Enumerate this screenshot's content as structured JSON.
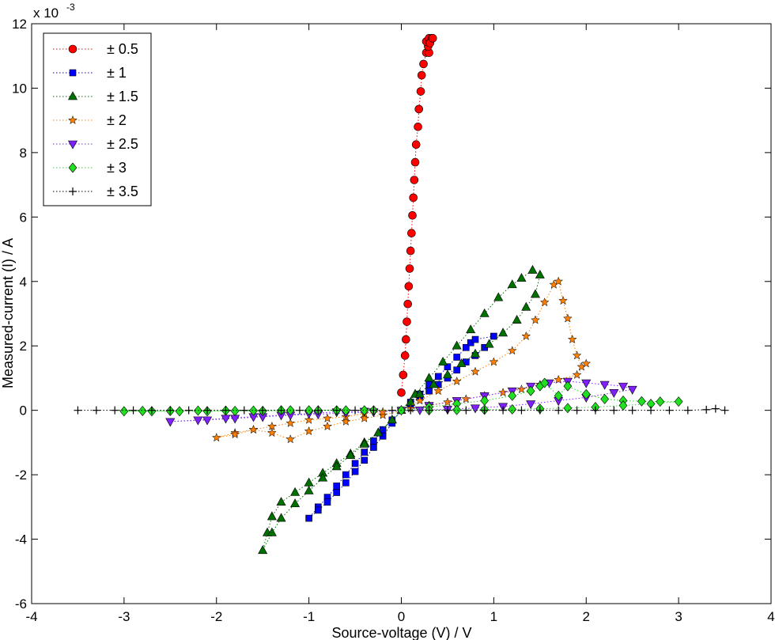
{
  "chart_data": {
    "type": "scatter",
    "title": "",
    "xlabel": "Source-voltage (V) / V",
    "ylabel": "Measured-current (I) / A",
    "y_exponent_label": "x 10",
    "y_exponent_power": "-3",
    "xlim": [
      -4,
      4
    ],
    "ylim": [
      -6,
      12
    ],
    "xticks": [
      -4,
      -3,
      -2,
      -1,
      0,
      1,
      2,
      3,
      4
    ],
    "yticks": [
      -6,
      -4,
      -2,
      0,
      2,
      4,
      6,
      8,
      10,
      12
    ],
    "grid": false,
    "legend_position": "top-left",
    "line_style": "dotted",
    "series": [
      {
        "name": "± 0.5",
        "color": "#ff0000",
        "marker": "circle",
        "points": [
          [
            0,
            0.55
          ],
          [
            0.02,
            1.1
          ],
          [
            0.04,
            1.7
          ],
          [
            0.05,
            2.2
          ],
          [
            0.06,
            2.75
          ],
          [
            0.07,
            3.3
          ],
          [
            0.08,
            3.85
          ],
          [
            0.09,
            4.4
          ],
          [
            0.1,
            4.95
          ],
          [
            0.11,
            5.5
          ],
          [
            0.12,
            6.05
          ],
          [
            0.13,
            6.6
          ],
          [
            0.14,
            7.15
          ],
          [
            0.15,
            7.7
          ],
          [
            0.16,
            8.25
          ],
          [
            0.18,
            8.8
          ],
          [
            0.19,
            9.35
          ],
          [
            0.21,
            9.9
          ],
          [
            0.22,
            10.4
          ],
          [
            0.24,
            10.75
          ],
          [
            0.27,
            11.1
          ],
          [
            0.3,
            11.1
          ],
          [
            0.29,
            11.3
          ],
          [
            0.27,
            11.45
          ],
          [
            0.3,
            11.55
          ],
          [
            0.33,
            11.55
          ],
          [
            0.31,
            11.4
          ],
          [
            0.34,
            11.55
          ]
        ]
      },
      {
        "name": "± 1",
        "color": "#0000ff",
        "marker": "square",
        "points": [
          [
            0,
            0
          ],
          [
            0.1,
            0.25
          ],
          [
            0.2,
            0.5
          ],
          [
            0.3,
            0.8
          ],
          [
            0.4,
            1.05
          ],
          [
            0.5,
            1.35
          ],
          [
            0.6,
            1.65
          ],
          [
            0.7,
            1.95
          ],
          [
            0.75,
            2.1
          ],
          [
            0.8,
            2.2
          ],
          [
            1.0,
            2.3
          ],
          [
            0.9,
            1.95
          ],
          [
            0.8,
            1.7
          ],
          [
            0.7,
            1.5
          ],
          [
            0.6,
            1.25
          ],
          [
            0.5,
            1.0
          ],
          [
            0.4,
            0.8
          ],
          [
            0.3,
            0.6
          ],
          [
            0.2,
            0.4
          ],
          [
            0.1,
            0.2
          ],
          [
            -0.1,
            -0.3
          ],
          [
            -0.2,
            -0.6
          ],
          [
            -0.3,
            -0.95
          ],
          [
            -0.4,
            -1.3
          ],
          [
            -0.5,
            -1.65
          ],
          [
            -0.6,
            -2.0
          ],
          [
            -0.7,
            -2.35
          ],
          [
            -0.8,
            -2.7
          ],
          [
            -0.9,
            -3.0
          ],
          [
            -1.0,
            -3.35
          ],
          [
            -0.9,
            -3.1
          ],
          [
            -0.8,
            -2.85
          ],
          [
            -0.7,
            -2.55
          ],
          [
            -0.6,
            -2.25
          ],
          [
            -0.5,
            -1.9
          ],
          [
            -0.4,
            -1.55
          ],
          [
            -0.3,
            -1.15
          ],
          [
            -0.2,
            -0.8
          ],
          [
            -0.1,
            -0.4
          ]
        ]
      },
      {
        "name": "± 1.5",
        "color": "#007000",
        "marker": "triangle-up",
        "points": [
          [
            0,
            0
          ],
          [
            0.15,
            0.5
          ],
          [
            0.3,
            1.0
          ],
          [
            0.45,
            1.5
          ],
          [
            0.6,
            2.0
          ],
          [
            0.75,
            2.5
          ],
          [
            0.9,
            3.0
          ],
          [
            1.05,
            3.5
          ],
          [
            1.2,
            3.9
          ],
          [
            1.3,
            4.1
          ],
          [
            1.42,
            4.35
          ],
          [
            1.5,
            4.2
          ],
          [
            1.45,
            3.6
          ],
          [
            1.35,
            3.2
          ],
          [
            1.25,
            2.8
          ],
          [
            1.1,
            2.4
          ],
          [
            0.95,
            2.05
          ],
          [
            0.8,
            1.75
          ],
          [
            0.65,
            1.45
          ],
          [
            0.5,
            1.1
          ],
          [
            0.35,
            0.8
          ],
          [
            0.2,
            0.5
          ],
          [
            0.1,
            0.25
          ],
          [
            -0.1,
            -0.3
          ],
          [
            -0.25,
            -0.7
          ],
          [
            -0.4,
            -1.0
          ],
          [
            -0.55,
            -1.35
          ],
          [
            -0.7,
            -1.65
          ],
          [
            -0.85,
            -1.95
          ],
          [
            -1.0,
            -2.25
          ],
          [
            -1.15,
            -2.55
          ],
          [
            -1.3,
            -2.85
          ],
          [
            -1.4,
            -3.3
          ],
          [
            -1.45,
            -3.8
          ],
          [
            -1.5,
            -4.35
          ],
          [
            -1.4,
            -3.8
          ],
          [
            -1.3,
            -3.35
          ],
          [
            -1.15,
            -2.9
          ],
          [
            -1.0,
            -2.5
          ],
          [
            -0.85,
            -2.1
          ],
          [
            -0.7,
            -1.75
          ],
          [
            -0.55,
            -1.4
          ],
          [
            -0.4,
            -1.05
          ],
          [
            -0.25,
            -0.7
          ],
          [
            -0.1,
            -0.3
          ]
        ]
      },
      {
        "name": "± 2",
        "color": "#ff8000",
        "marker": "star",
        "points": [
          [
            0,
            0
          ],
          [
            0.2,
            0.3
          ],
          [
            0.4,
            0.6
          ],
          [
            0.6,
            0.9
          ],
          [
            0.8,
            1.2
          ],
          [
            1.0,
            1.5
          ],
          [
            1.2,
            1.85
          ],
          [
            1.35,
            2.3
          ],
          [
            1.45,
            2.8
          ],
          [
            1.55,
            3.35
          ],
          [
            1.65,
            3.9
          ],
          [
            1.7,
            4.0
          ],
          [
            1.75,
            3.4
          ],
          [
            1.8,
            2.85
          ],
          [
            1.85,
            2.2
          ],
          [
            1.9,
            1.7
          ],
          [
            1.95,
            1.35
          ],
          [
            2.0,
            1.45
          ],
          [
            1.9,
            1.1
          ],
          [
            1.7,
            0.95
          ],
          [
            1.5,
            0.8
          ],
          [
            1.3,
            0.65
          ],
          [
            1.1,
            0.55
          ],
          [
            0.9,
            0.45
          ],
          [
            0.7,
            0.35
          ],
          [
            0.5,
            0.25
          ],
          [
            0.3,
            0.15
          ],
          [
            0.1,
            0.05
          ],
          [
            -0.2,
            -0.15
          ],
          [
            -0.4,
            -0.25
          ],
          [
            -0.6,
            -0.35
          ],
          [
            -0.8,
            -0.5
          ],
          [
            -1.0,
            -0.65
          ],
          [
            -1.2,
            -0.9
          ],
          [
            -1.4,
            -0.7
          ],
          [
            -1.6,
            -0.6
          ],
          [
            -1.8,
            -0.7
          ],
          [
            -2.0,
            -0.85
          ],
          [
            -1.8,
            -0.75
          ],
          [
            -1.6,
            -0.6
          ],
          [
            -1.4,
            -0.5
          ],
          [
            -1.2,
            -0.4
          ],
          [
            -1.0,
            -0.3
          ],
          [
            -0.8,
            -0.25
          ],
          [
            -0.6,
            -0.2
          ],
          [
            -0.4,
            -0.1
          ],
          [
            -0.2,
            -0.05
          ]
        ]
      },
      {
        "name": "± 2.5",
        "color": "#8020ff",
        "marker": "triangle-down",
        "points": [
          [
            0,
            0
          ],
          [
            0.3,
            0.15
          ],
          [
            0.6,
            0.3
          ],
          [
            0.9,
            0.45
          ],
          [
            1.2,
            0.6
          ],
          [
            1.4,
            0.75
          ],
          [
            1.6,
            0.85
          ],
          [
            1.8,
            0.9
          ],
          [
            2.0,
            0.85
          ],
          [
            2.2,
            0.8
          ],
          [
            2.4,
            0.75
          ],
          [
            2.5,
            0.65
          ],
          [
            2.3,
            0.55
          ],
          [
            2.0,
            0.4
          ],
          [
            1.7,
            0.3
          ],
          [
            1.4,
            0.2
          ],
          [
            1.1,
            0.12
          ],
          [
            0.8,
            0.07
          ],
          [
            0.5,
            0.03
          ],
          [
            0.2,
            0.01
          ],
          [
            -0.3,
            -0.05
          ],
          [
            -0.6,
            -0.08
          ],
          [
            -0.9,
            -0.12
          ],
          [
            -1.2,
            -0.15
          ],
          [
            -1.5,
            -0.2
          ],
          [
            -1.8,
            -0.25
          ],
          [
            -2.1,
            -0.3
          ],
          [
            -2.5,
            -0.35
          ],
          [
            -2.2,
            -0.3
          ],
          [
            -1.9,
            -0.25
          ],
          [
            -1.6,
            -0.2
          ],
          [
            -1.3,
            -0.15
          ],
          [
            -1.0,
            -0.1
          ],
          [
            -0.7,
            -0.05
          ],
          [
            -0.4,
            -0.03
          ]
        ]
      },
      {
        "name": "± 3",
        "color": "#20e020",
        "marker": "diamond",
        "points": [
          [
            0,
            0
          ],
          [
            0.3,
            0.1
          ],
          [
            0.6,
            0.2
          ],
          [
            0.9,
            0.3
          ],
          [
            1.2,
            0.45
          ],
          [
            1.4,
            0.6
          ],
          [
            1.5,
            0.75
          ],
          [
            1.55,
            0.85
          ],
          [
            1.7,
            0.45
          ],
          [
            1.8,
            0.75
          ],
          [
            2.0,
            0.5
          ],
          [
            2.2,
            0.35
          ],
          [
            2.4,
            0.3
          ],
          [
            2.6,
            0.28
          ],
          [
            2.8,
            0.27
          ],
          [
            3.0,
            0.27
          ],
          [
            2.7,
            0.2
          ],
          [
            2.4,
            0.15
          ],
          [
            2.1,
            0.1
          ],
          [
            1.8,
            0.07
          ],
          [
            1.5,
            0.05
          ],
          [
            1.2,
            0.03
          ],
          [
            0.9,
            0.02
          ],
          [
            0.6,
            0.01
          ],
          [
            0.3,
            0.0
          ],
          [
            -0.3,
            0.0
          ],
          [
            -0.6,
            0.0
          ],
          [
            -0.9,
            0.0
          ],
          [
            -1.2,
            0.0
          ],
          [
            -1.5,
            -0.02
          ],
          [
            -1.8,
            -0.02
          ],
          [
            -2.1,
            -0.03
          ],
          [
            -2.4,
            -0.03
          ],
          [
            -2.7,
            -0.03
          ],
          [
            -3.0,
            -0.03
          ],
          [
            -2.8,
            -0.02
          ],
          [
            -2.5,
            -0.02
          ],
          [
            -2.2,
            -0.01
          ],
          [
            -1.9,
            -0.01
          ],
          [
            -1.6,
            -0.01
          ],
          [
            -1.3,
            0.0
          ],
          [
            -1.0,
            0.0
          ],
          [
            -0.7,
            0.0
          ],
          [
            -0.4,
            0.0
          ]
        ]
      },
      {
        "name": "± 3.5",
        "color": "#000000",
        "marker": "plus",
        "points": [
          [
            -3.5,
            0.0
          ],
          [
            -3.3,
            0.0
          ],
          [
            -3.1,
            0.0
          ],
          [
            -2.9,
            0.0
          ],
          [
            -2.7,
            0.0
          ],
          [
            -2.5,
            0.0
          ],
          [
            -2.3,
            0.0
          ],
          [
            -2.1,
            0.0
          ],
          [
            -1.9,
            0.0
          ],
          [
            -1.7,
            0.0
          ],
          [
            -1.5,
            0.0
          ],
          [
            -1.3,
            0.0
          ],
          [
            -1.1,
            0.0
          ],
          [
            -0.9,
            0.0
          ],
          [
            -0.7,
            0.0
          ],
          [
            -0.5,
            0.0
          ],
          [
            -0.3,
            0.0
          ],
          [
            -0.1,
            0.0
          ],
          [
            0.1,
            0.0
          ],
          [
            0.3,
            0.0
          ],
          [
            0.5,
            0.0
          ],
          [
            0.7,
            0.0
          ],
          [
            0.9,
            0.0
          ],
          [
            1.1,
            0.0
          ],
          [
            1.3,
            0.0
          ],
          [
            1.5,
            0.0
          ],
          [
            1.7,
            0.0
          ],
          [
            1.9,
            0.0
          ],
          [
            2.1,
            0.0
          ],
          [
            2.3,
            0.0
          ],
          [
            2.5,
            0.0
          ],
          [
            2.7,
            0.0
          ],
          [
            2.9,
            0.0
          ],
          [
            3.1,
            0.0
          ],
          [
            3.3,
            0.02
          ],
          [
            3.4,
            0.05
          ],
          [
            3.5,
            0.0
          ]
        ]
      }
    ]
  }
}
